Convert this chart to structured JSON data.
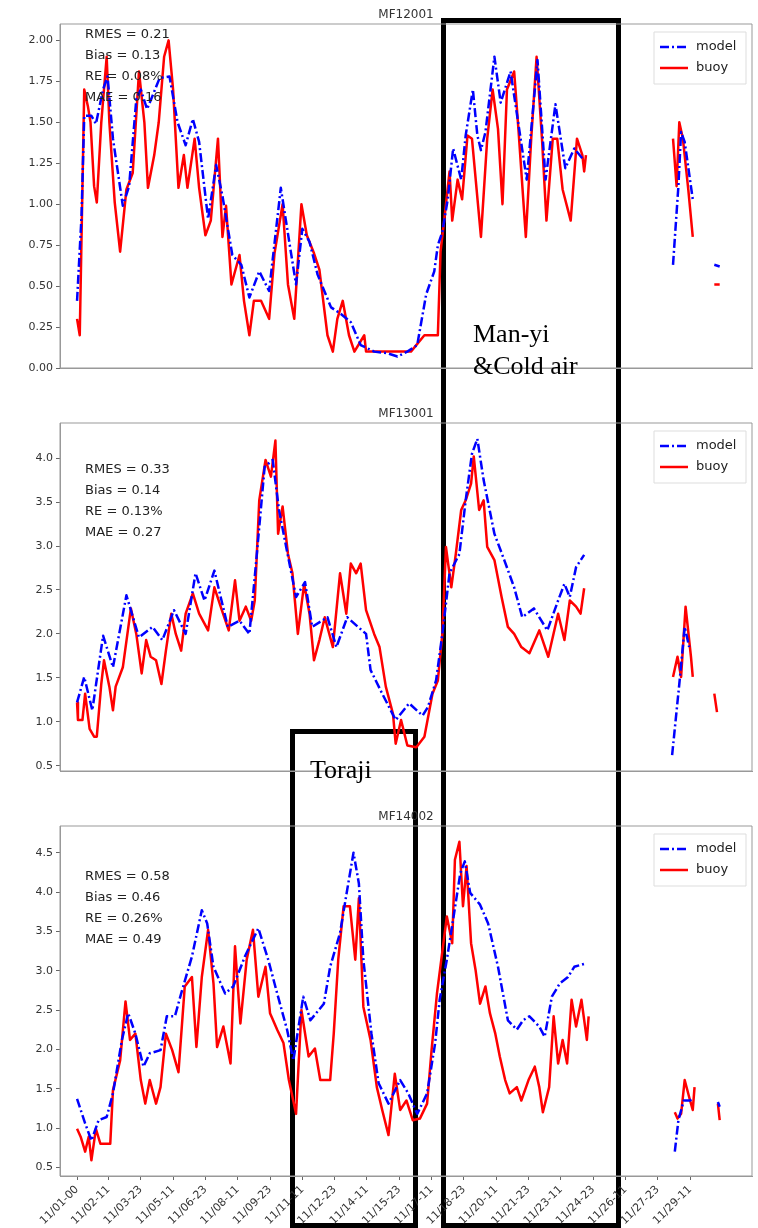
{
  "chart_data": [
    {
      "type": "line",
      "title": "MF12001",
      "xlim": [
        "--10-31T05:00",
        "--12-02T08:00"
      ],
      "ylim": [
        0,
        2.1
      ],
      "yticks": [
        {
          "value": 0,
          "label": "0.00"
        },
        0.25,
        {
          "value": 0.5,
          "label": "0.50"
        },
        0.75,
        {
          "value": 1,
          "label": "1.00"
        },
        1.25,
        {
          "value": 1.5,
          "label": "1.50"
        },
        1.75,
        {
          "value": 2,
          "label": "2.00"
        }
      ],
      "tick_labels": "y",
      "legend": "top right",
      "annotations": [
        "RMES = 0.21",
        "Bias = 0.13",
        "RE = 0.08%",
        "MAE = 0.16",
        "Man-yi &Cold air"
      ],
      "series": [
        {
          "name": "model",
          "color": "#0000ff",
          "line_style": "dashed",
          "x": [
            "--11-01T00:00",
            "--11-01T05:00",
            "--11-01T08:00",
            "--11-01T16:00",
            "--11-01T21:00",
            "--11-02T05:00",
            "--11-02T10:00",
            "--11-02T16:00",
            "--11-03T03:00",
            "--11-03T10:00",
            "--11-03T18:00",
            "--11-03T23:00",
            "--11-04T06:00",
            "--11-04T12:00",
            "--11-04T20:00",
            "--11-05T07:00",
            "--11-05T16:00",
            "--11-06T01:00",
            "--11-06T09:00",
            "--11-06T16:00",
            "--11-07T02:00",
            "--11-07T11:00",
            "--11-07T18:00",
            "--11-08T05:00",
            "--11-08T15:00",
            "--11-09T00:00",
            "--11-09T11:00",
            "--11-09T22:00",
            "--11-10T11:00",
            "--11-10T21:00",
            "--11-11T04:00",
            "--11-11T11:00",
            "--11-11T19:00",
            "--11-12T04:00",
            "--11-12T19:00",
            "--11-13T06:00",
            "--11-13T17:00",
            "--11-14T04:00",
            "--11-14T19:00",
            "--11-15T10:00",
            "--11-15T21:00",
            "--11-16T08:00",
            "--11-16T19:00",
            "--11-17T05:00",
            "--11-17T14:00",
            "--11-17T18:00",
            "--11-17T23:00",
            "--11-18T05:00",
            "--11-18T11:00",
            "--11-18T20:00",
            "--11-19T01:00",
            "--11-19T09:00",
            "--11-19T14:00",
            "--11-19T18:00",
            "--11-19T23:00",
            "--11-20T09:00",
            "--11-20T16:00",
            "--11-21T03:00",
            "--11-21T12:00",
            "--11-21T21:00",
            "--11-22T09:00",
            "--11-22T18:00",
            "--11-23T05:00",
            "--11-23T16:00",
            "--11-24T02:00",
            "--11-24T11:00",
            "--11-26T15:00",
            "--11-28T16:00",
            "--11-28T22:00",
            "--11-29T01:00",
            "--11-29T05:00",
            "--11-29T14:00",
            "--11-30T04:00",
            "--11-30T14:00",
            "--11-30T20:00"
          ],
          "values": [
            0.41,
            0.93,
            1.54,
            1.54,
            1.49,
            1.7,
            1.78,
            1.4,
            0.99,
            1.11,
            1.64,
            1.7,
            1.58,
            1.66,
            1.77,
            1.78,
            1.5,
            1.36,
            1.52,
            1.38,
            0.91,
            1.24,
            1.05,
            0.69,
            0.63,
            0.43,
            0.59,
            0.47,
            1.1,
            0.75,
            0.51,
            0.85,
            0.77,
            0.57,
            0.37,
            0.33,
            0.28,
            0.14,
            0.1,
            0.09,
            0.07,
            0.1,
            0.14,
            0.45,
            0.59,
            0.75,
            0.83,
            1.03,
            1.34,
            1.15,
            1.42,
            1.7,
            1.42,
            1.33,
            1.44,
            1.9,
            1.62,
            1.81,
            1.48,
            1.15,
            1.88,
            1.15,
            1.61,
            1.22,
            1.34,
            1.28,
            null,
            0.63,
            1.11,
            1.44,
            1.38,
            1.03,
            null,
            0.63,
            0.62
          ]
        },
        {
          "name": "buoy",
          "color": "#ff0000",
          "line_style": "solid",
          "x": [
            "--11-01T00:00",
            "--11-01T03:00",
            "--11-01T08:00",
            "--11-01T12:00",
            "--11-01T15:00",
            "--11-01T19:00",
            "--11-01T22:00",
            "--11-02T03:00",
            "--11-02T09:00",
            "--11-02T12:00",
            "--11-02T18:00",
            "--11-03T00:00",
            "--11-03T07:00",
            "--11-03T14:00",
            "--11-03T21:00",
            "--11-04T03:00",
            "--11-04T07:00",
            "--11-04T14:00",
            "--11-04T19:00",
            "--11-05T01:00",
            "--11-05T06:00",
            "--11-05T11:00",
            "--11-05T17:00",
            "--11-05T23:00",
            "--11-06T03:00",
            "--11-06T11:00",
            "--11-06T16:00",
            "--11-06T23:00",
            "--11-07T05:00",
            "--11-07T13:00",
            "--11-07T18:00",
            "--11-07T22:00",
            "--11-08T04:00",
            "--11-08T13:00",
            "--11-08T18:00",
            "--11-09T00:00",
            "--11-09T05:00",
            "--11-09T13:00",
            "--11-09T22:00",
            "--11-10T04:00",
            "--11-10T13:00",
            "--11-10T19:00",
            "--11-11T02:00",
            "--11-11T10:00",
            "--11-11T16:00",
            "--11-12T00:00",
            "--11-12T06:00",
            "--11-12T15:00",
            "--11-12T21:00",
            "--11-13T02:00",
            "--11-13T08:00",
            "--11-13T15:00",
            "--11-13T21:00",
            "--11-14T08:00",
            "--11-14T10:00",
            "--11-16T08:00",
            "--11-16T12:00",
            "--11-17T03:00",
            "--11-17T18:00",
            "--11-17T21:00",
            "--11-18T01:00",
            "--11-18T07:00",
            "--11-18T10:00",
            "--11-18T16:00",
            "--11-18T21:00",
            "--11-19T03:00",
            "--11-19T08:00",
            "--11-19T18:00",
            "--11-20T01:00",
            "--11-20T07:00",
            "--11-20T13:00",
            "--11-20T18:00",
            "--11-20T23:00",
            "--11-21T07:00",
            "--11-21T12:00",
            "--11-21T20:00",
            "--11-22T02:00",
            "--11-22T08:00",
            "--11-22T14:00",
            "--11-22T19:00",
            "--11-23T02:00",
            "--11-23T07:00",
            "--11-23T13:00",
            "--11-23T22:00",
            "--11-24T05:00",
            "--11-24T11:00",
            "--11-24T13:00",
            "--11-24T15:00",
            "--11-26T15:00",
            "--11-28T16:00",
            "--11-28T20:00",
            "--11-28T23:00",
            "--11-29T03:00",
            "--11-29T09:00",
            "--11-29T14:00",
            "--11-30T04:00",
            "--11-30T14:00",
            "--11-30T20:00"
          ],
          "values": [
            0.3,
            0.2,
            1.7,
            1.6,
            1.5,
            1.11,
            1.01,
            1.5,
            1.9,
            1.5,
            1.01,
            0.71,
            1.09,
            1.19,
            1.81,
            1.5,
            1.1,
            1.3,
            1.5,
            1.9,
            2.0,
            1.7,
            1.1,
            1.3,
            1.1,
            1.4,
            1.1,
            0.81,
            0.9,
            1.4,
            0.8,
            0.99,
            0.51,
            0.69,
            0.41,
            0.2,
            0.41,
            0.41,
            0.3,
            0.7,
            1.0,
            0.51,
            0.3,
            1.0,
            0.81,
            0.7,
            0.6,
            0.2,
            0.1,
            0.3,
            0.41,
            0.2,
            0.1,
            0.2,
            0.1,
            0.1,
            0.1,
            0.2,
            0.2,
            0.71,
            0.9,
            1.2,
            0.9,
            1.15,
            1.03,
            1.42,
            1.4,
            0.8,
            1.4,
            1.7,
            1.46,
            1.0,
            1.7,
            1.81,
            1.44,
            0.8,
            1.4,
            1.9,
            1.4,
            0.9,
            1.4,
            1.4,
            1.09,
            0.9,
            1.4,
            1.3,
            1.2,
            1.3,
            null,
            1.4,
            1.11,
            1.5,
            1.4,
            1.09,
            0.8,
            null,
            0.51,
            0.51
          ]
        }
      ]
    },
    {
      "type": "line",
      "title": "MF13001",
      "xlim": [
        "--10-31T05:00",
        "--12-02T08:00"
      ],
      "ylim": [
        0.44,
        4.4
      ],
      "yticks": [
        0.5,
        {
          "value": 1,
          "label": "1.0"
        },
        1.5,
        {
          "value": 2,
          "label": "2.0"
        },
        2.5,
        {
          "value": 3,
          "label": "3.0"
        },
        3.5,
        {
          "value": 4,
          "label": "4.0"
        }
      ],
      "tick_labels": "y",
      "legend": "top right",
      "annotations": [
        "RMES = 0.33",
        "Bias = 0.14",
        "RE = 0.13%",
        "MAE = 0.27",
        "Toraji"
      ],
      "series": [
        {
          "name": "model",
          "color": "#0000ff",
          "line_style": "dashed",
          "x": [
            "--11-01T00:00",
            "--11-01T08:00",
            "--11-01T17:00",
            "--11-02T05:00",
            "--11-02T16:00",
            "--11-03T07:00",
            "--11-03T21:00",
            "--11-04T12:00",
            "--11-04T23:00",
            "--11-05T12:00",
            "--11-06T01:00",
            "--11-06T12:00",
            "--11-06T22:00",
            "--11-07T09:00",
            "--11-08T00:00",
            "--11-08T13:00",
            "--11-09T00:00",
            "--11-09T07:00",
            "--11-09T17:00",
            "--11-10T02:00",
            "--11-10T09:00",
            "--11-10T17:00",
            "--11-11T04:00",
            "--11-11T14:00",
            "--11-11T22:00",
            "--11-12T15:00",
            "--11-13T01:00",
            "--11-13T13:00",
            "--11-14T01:00",
            "--11-14T10:00",
            "--11-14T15:00",
            "--11-15T04:00",
            "--11-15T19:00",
            "--11-16T10:00",
            "--11-17T01:00",
            "--11-17T07:00",
            "--11-17T16:00",
            "--11-17T23:00",
            "--11-18T07:00",
            "--11-18T18:00",
            "--11-19T01:00",
            "--11-19T08:00",
            "--11-19T14:00",
            "--11-19T21:00",
            "--11-20T09:00",
            "--11-20T20:00",
            "--11-21T07:00",
            "--11-21T16:00",
            "--11-22T05:00",
            "--11-22T20:00",
            "--11-23T08:00",
            "--11-23T15:00",
            "--11-23T21:00",
            "--11-24T04:00",
            "--11-24T13:00",
            "--11-26T15:00",
            "--11-28T15:00",
            "--11-28T23:00",
            "--11-29T05:00",
            "--11-29T10:00"
          ],
          "values": [
            1.22,
            1.51,
            1.13,
            1.98,
            1.62,
            2.44,
            1.96,
            2.08,
            1.93,
            2.27,
            2.0,
            2.69,
            2.38,
            2.72,
            2.08,
            2.15,
            2.0,
            2.76,
            3.9,
            3.98,
            3.41,
            2.99,
            2.42,
            2.59,
            2.08,
            2.19,
            1.85,
            2.19,
            2.08,
            2.0,
            1.59,
            1.32,
            1.02,
            1.21,
            1.07,
            1.17,
            1.47,
            2.0,
            2.69,
            2.91,
            3.52,
            4.05,
            4.22,
            3.75,
            3.14,
            2.84,
            2.53,
            2.19,
            2.29,
            2.04,
            2.38,
            2.57,
            2.42,
            2.76,
            2.9,
            null,
            0.62,
            1.43,
            2.08,
            1.85
          ]
        },
        {
          "name": "buoy",
          "color": "#ff0000",
          "line_style": "solid",
          "x": [
            "--11-01T00:00",
            "--11-01T01:00",
            "--11-01T06:00",
            "--11-01T09:00",
            "--11-01T14:00",
            "--11-01T19:00",
            "--11-01T22:00",
            "--11-02T03:00",
            "--11-02T06:00",
            "--11-02T12:00",
            "--11-02T16:00",
            "--11-02T19:00",
            "--11-03T03:00",
            "--11-03T12:00",
            "--11-03T18:00",
            "--11-04T00:00",
            "--11-04T05:00",
            "--11-04T10:00",
            "--11-04T16:00",
            "--11-04T22:00",
            "--11-05T03:00",
            "--11-05T09:00",
            "--11-05T14:00",
            "--11-05T20:00",
            "--11-06T01:00",
            "--11-06T09:00",
            "--11-06T16:00",
            "--11-07T02:00",
            "--11-07T09:00",
            "--11-07T16:00",
            "--11-08T01:00",
            "--11-08T08:00",
            "--11-08T13:00",
            "--11-08T20:00",
            "--11-09T02:00",
            "--11-09T06:00",
            "--11-09T11:00",
            "--11-09T18:00",
            "--11-10T00:00",
            "--11-10T05:00",
            "--11-10T08:00",
            "--11-10T13:00",
            "--11-10T19:00",
            "--11-11T00:00",
            "--11-11T06:00",
            "--11-11T13:00",
            "--11-11T19:00",
            "--11-12T00:00",
            "--11-12T06:00",
            "--11-12T12:00",
            "--11-12T21:00",
            "--11-13T05:00",
            "--11-13T12:00",
            "--11-13T17:00",
            "--11-13T23:00",
            "--11-14T04:00",
            "--11-14T10:00",
            "--11-14T19:00",
            "--11-15T01:00",
            "--11-15T08:00",
            "--11-15T16:00",
            "--11-15T19:00",
            "--11-16T01:00",
            "--11-16T08:00",
            "--11-16T18:00",
            "--11-17T03:00",
            "--11-17T12:00",
            "--11-17T18:00",
            "--11-17T23:00",
            "--11-18T03:00",
            "--11-18T09:00",
            "--11-18T14:00",
            "--11-18T20:00",
            "--11-19T01:00",
            "--11-19T07:00",
            "--11-19T10:00",
            "--11-19T16:00",
            "--11-19T21:00",
            "--11-20T01:00",
            "--11-20T09:00",
            "--11-20T17:00",
            "--11-21T00:00",
            "--11-21T07:00",
            "--11-21T15:00",
            "--11-22T00:00",
            "--11-22T11:00",
            "--11-22T21:00",
            "--11-23T08:00",
            "--11-23T15:00",
            "--11-23T21:00",
            "--11-24T04:00",
            "--11-24T09:00",
            "--11-24T13:00",
            "--11-26T15:00",
            "--11-28T16:00",
            "--11-28T21:00",
            "--11-29T01:00",
            "--11-29T06:00",
            "--11-29T12:00",
            "--11-29T14:00",
            "--11-30T04:00",
            "--11-30T14:00",
            "--11-30T17:00"
          ],
          "values": [
            1.22,
            1.02,
            1.02,
            1.32,
            0.92,
            0.83,
            0.83,
            1.43,
            1.7,
            1.4,
            1.13,
            1.4,
            1.62,
            2.29,
            2.0,
            1.55,
            1.93,
            1.74,
            1.7,
            1.43,
            1.81,
            2.23,
            2.0,
            1.81,
            2.23,
            2.46,
            2.23,
            2.04,
            2.53,
            2.31,
            2.04,
            2.61,
            2.15,
            2.31,
            2.15,
            2.38,
            3.52,
            3.98,
            3.79,
            4.2,
            3.14,
            3.45,
            2.91,
            2.69,
            2.0,
            2.57,
            2.23,
            1.7,
            1.93,
            2.19,
            1.85,
            2.69,
            2.23,
            2.8,
            2.69,
            2.8,
            2.27,
            2.0,
            1.85,
            1.4,
            1.09,
            0.75,
            1.02,
            0.73,
            0.71,
            0.83,
            1.32,
            1.47,
            2.0,
            2.99,
            2.53,
            2.91,
            3.41,
            3.52,
            3.71,
            4.02,
            3.41,
            3.52,
            2.99,
            2.84,
            2.42,
            2.08,
            2.0,
            1.85,
            1.78,
            2.04,
            1.74,
            2.23,
            1.93,
            2.38,
            2.31,
            2.23,
            2.52,
            null,
            1.51,
            1.74,
            1.51,
            2.31,
            1.74,
            1.51,
            null,
            1.32,
            1.11
          ]
        }
      ]
    },
    {
      "type": "line",
      "title": "MF14002",
      "xlim": [
        "--10-31T05:00",
        "--12-02T08:00"
      ],
      "xticks": [
        {
          "value": "--11-01T00:00",
          "label": "11/01-00"
        },
        {
          "value": "--11-02T11:00",
          "label": "11/02-11"
        },
        {
          "value": "--11-03T23:00",
          "label": "11/03-23"
        },
        {
          "value": "--11-05T11:00",
          "label": "11/05-11"
        },
        {
          "value": "--11-06T23:00",
          "label": "11/06-23"
        },
        {
          "value": "--11-08T11:00",
          "label": "11/08-11"
        },
        {
          "value": "--11-09T23:00",
          "label": "11/09-23"
        },
        {
          "value": "--11-11T11:00",
          "label": "11/11-11"
        },
        {
          "value": "--11-12T23:00",
          "label": "11/12-23"
        },
        {
          "value": "--11-14T11:00",
          "label": "11/14-11"
        },
        {
          "value": "--11-15T23:00",
          "label": "11/15-23"
        },
        {
          "value": "--11-17T11:00",
          "label": "11/17-11"
        },
        {
          "value": "--11-18T23:00",
          "label": "11/18-23"
        },
        {
          "value": "--11-20T11:00",
          "label": "11/20-11"
        },
        {
          "value": "--11-21T23:00",
          "label": "11/21-23"
        },
        {
          "value": "--11-23T11:00",
          "label": "11/23-11"
        },
        {
          "value": "--11-24T23:00",
          "label": "11/24-23"
        },
        {
          "value": "--11-26T11:00",
          "label": "11/26-11"
        },
        {
          "value": "--11-27T23:00",
          "label": "11/27-23"
        },
        {
          "value": "--11-29T11:00",
          "label": "11/29-11"
        }
      ],
      "ylim": [
        0.39,
        4.84
      ],
      "yticks": [
        0.5,
        {
          "value": 1,
          "label": "1.0"
        },
        1.5,
        {
          "value": 2,
          "label": "2.0"
        },
        2.5,
        {
          "value": 3,
          "label": "3.0"
        },
        3.5,
        {
          "value": 4,
          "label": "4.0"
        },
        4.5
      ],
      "legend": "top right",
      "annotations": [
        "RMES = 0.58",
        "Bias = 0.46",
        "RE = 0.26%",
        "MAE = 0.49"
      ],
      "series": [
        {
          "name": "model",
          "color": "#0000ff",
          "line_style": "dashed",
          "x": [
            "--11-01T00:00",
            "--11-01T09:00",
            "--11-01T16:00",
            "--11-02T00:00",
            "--11-02T09:00",
            "--11-02T16:00",
            "--11-03T02:00",
            "--11-03T09:00",
            "--11-03T17:00",
            "--11-04T02:00",
            "--11-04T09:00",
            "--11-04T21:00",
            "--11-05T04:00",
            "--11-05T13:00",
            "--11-05T21:00",
            "--11-06T08:00",
            "--11-06T19:00",
            "--11-07T01:00",
            "--11-07T08:00",
            "--11-07T21:00",
            "--11-08T06:00",
            "--11-08T19:00",
            "--11-09T10:00",
            "--11-09T21:00",
            "--11-10T07:00",
            "--11-10T18:00",
            "--11-11T01:00",
            "--11-11T12:00",
            "--11-11T20:00",
            "--11-12T11:00",
            "--11-12T18:00",
            "--11-13T05:00",
            "--11-13T13:00",
            "--11-13T20:00",
            "--11-14T02:00",
            "--11-14T07:00",
            "--11-14T16:00",
            "--11-15T00:00",
            "--11-15T11:00",
            "--11-16T00:00",
            "--11-16T09:00",
            "--11-16T19:00",
            "--11-17T06:00",
            "--11-17T15:00",
            "--11-17T20:00",
            "--11-18T04:00",
            "--11-18T11:00",
            "--11-18T19:00",
            "--11-19T00:00",
            "--11-19T06:00",
            "--11-19T17:00",
            "--11-20T02:00",
            "--11-20T13:00",
            "--11-21T00:00",
            "--11-21T10:00",
            "--11-21T17:00",
            "--11-22T00:00",
            "--11-22T11:00",
            "--11-22T17:00",
            "--11-23T01:00",
            "--11-23T10:00",
            "--11-23T19:00",
            "--11-24T02:00",
            "--11-24T14:00",
            "--11-26T20:00",
            "--11-28T18:00",
            "--11-28T22:00",
            "--11-29T04:00",
            "--11-29T11:00",
            "--11-29T13:00",
            "--11-30T04:00",
            "--11-30T18:00",
            "--11-30T20:00"
          ],
          "values": [
            1.37,
            1.06,
            0.84,
            1.1,
            1.14,
            1.44,
            2.12,
            2.46,
            2.2,
            1.78,
            1.95,
            1.99,
            2.42,
            2.42,
            2.75,
            3.18,
            3.77,
            3.6,
            3.05,
            2.71,
            2.8,
            3.18,
            3.54,
            3.14,
            2.71,
            2.25,
            1.86,
            2.67,
            2.37,
            2.58,
            3.05,
            3.48,
            4.03,
            4.5,
            4.11,
            3.14,
            2.2,
            1.57,
            1.31,
            1.61,
            1.44,
            1.18,
            1.44,
            2.08,
            2.63,
            3.14,
            3.65,
            4.24,
            4.39,
            3.99,
            3.84,
            3.6,
            3.05,
            2.37,
            2.25,
            2.37,
            2.42,
            2.29,
            2.16,
            2.67,
            2.84,
            2.92,
            3.05,
            3.09,
            null,
            0.7,
            1.1,
            1.35,
            1.35,
            1.37,
            null,
            1.33,
            1.27
          ]
        },
        {
          "name": "buoy",
          "color": "#ff0000",
          "line_style": "solid",
          "x": [
            "--11-01T00:00",
            "--11-01T04:00",
            "--11-01T09:00",
            "--11-01T13:00",
            "--11-01T16:00",
            "--11-01T21:00",
            "--11-02T02:00",
            "--11-02T13:00",
            "--11-02T16:00",
            "--11-03T00:00",
            "--11-03T06:00",
            "--11-03T11:00",
            "--11-03T17:00",
            "--11-03T23:00",
            "--11-04T04:00",
            "--11-04T09:00",
            "--11-04T16:00",
            "--11-04T21:00",
            "--11-05T03:00",
            "--11-05T10:00",
            "--11-05T17:00",
            "--11-06T00:00",
            "--11-06T08:00",
            "--11-06T13:00",
            "--11-06T19:00",
            "--11-07T02:00",
            "--11-07T08:00",
            "--11-07T12:00",
            "--11-07T19:00",
            "--11-08T03:00",
            "--11-08T08:00",
            "--11-08T14:00",
            "--11-08T21:00",
            "--11-09T04:00",
            "--11-09T10:00",
            "--11-09T18:00",
            "--11-09T23:00",
            "--11-10T07:00",
            "--11-10T14:00",
            "--11-10T20:00",
            "--11-11T04:00",
            "--11-11T10:00",
            "--11-11T18:00",
            "--11-12T01:00",
            "--11-12T07:00",
            "--11-12T18:00",
            "--11-12T22:00",
            "--11-13T03:00",
            "--11-13T09:00",
            "--11-13T16:00",
            "--11-13T22:00",
            "--11-14T02:00",
            "--11-14T07:00",
            "--11-14T15:00",
            "--11-14T22:00",
            "--11-15T04:00",
            "--11-15T11:00",
            "--11-15T18:00",
            "--11-16T00:00",
            "--11-16T07:00",
            "--11-16T14:00",
            "--11-16T22:00",
            "--11-17T06:00",
            "--11-17T11:00",
            "--11-17T17:00",
            "--11-18T04:00",
            "--11-18T10:00",
            "--11-18T13:00",
            "--11-18T18:00",
            "--11-18T22:00",
            "--11-19T02:00",
            "--11-19T07:00",
            "--11-19T12:00",
            "--11-19T17:00",
            "--11-19T23:00",
            "--11-20T04:00",
            "--11-20T10:00",
            "--11-20T15:00",
            "--11-20T21:00",
            "--11-21T02:00",
            "--11-21T10:00",
            "--11-21T15:00",
            "--11-21T23:00",
            "--11-22T06:00",
            "--11-22T11:00",
            "--11-22T15:00",
            "--11-22T22:00",
            "--11-23T03:00",
            "--11-23T08:00",
            "--11-23T13:00",
            "--11-23T18:00",
            "--11-23T23:00",
            "--11-24T04:00",
            "--11-24T10:00",
            "--11-24T16:00",
            "--11-24T18:00",
            "--11-26T20:00",
            "--11-28T18:00",
            "--11-28T21:00",
            "--11-29T01:00",
            "--11-29T05:00",
            "--11-29T11:00",
            "--11-29T14:00",
            "--11-29T16:00",
            "--11-30T04:00",
            "--11-30T18:00",
            "--11-30T20:00"
          ],
          "values": [
            0.99,
            0.89,
            0.7,
            0.89,
            0.59,
            0.99,
            0.8,
            0.8,
            1.48,
            1.86,
            2.61,
            2.12,
            2.2,
            1.61,
            1.31,
            1.61,
            1.31,
            1.52,
            2.2,
            1.99,
            1.71,
            2.8,
            2.92,
            2.03,
            2.92,
            3.52,
            2.84,
            2.03,
            2.29,
            1.82,
            3.31,
            2.33,
            3.14,
            3.52,
            2.67,
            3.05,
            2.46,
            2.25,
            2.08,
            1.61,
            1.18,
            2.5,
            1.91,
            2.01,
            1.61,
            1.61,
            2.2,
            3.14,
            3.82,
            3.82,
            3.14,
            3.92,
            2.54,
            2.12,
            1.52,
            1.23,
            0.91,
            1.69,
            1.23,
            1.35,
            1.1,
            1.12,
            1.31,
            1.99,
            2.71,
            3.69,
            3.35,
            4.41,
            4.64,
            3.82,
            4.33,
            3.35,
            3.01,
            2.58,
            2.8,
            2.46,
            2.2,
            1.91,
            1.61,
            1.44,
            1.52,
            1.35,
            1.61,
            1.78,
            1.52,
            1.2,
            1.52,
            2.42,
            1.82,
            2.12,
            1.82,
            2.63,
            2.29,
            2.63,
            2.12,
            2.42,
            null,
            1.2,
            1.12,
            1.18,
            1.61,
            1.35,
            1.23,
            1.52,
            null,
            1.31,
            1.1
          ]
        }
      ]
    }
  ]
}
